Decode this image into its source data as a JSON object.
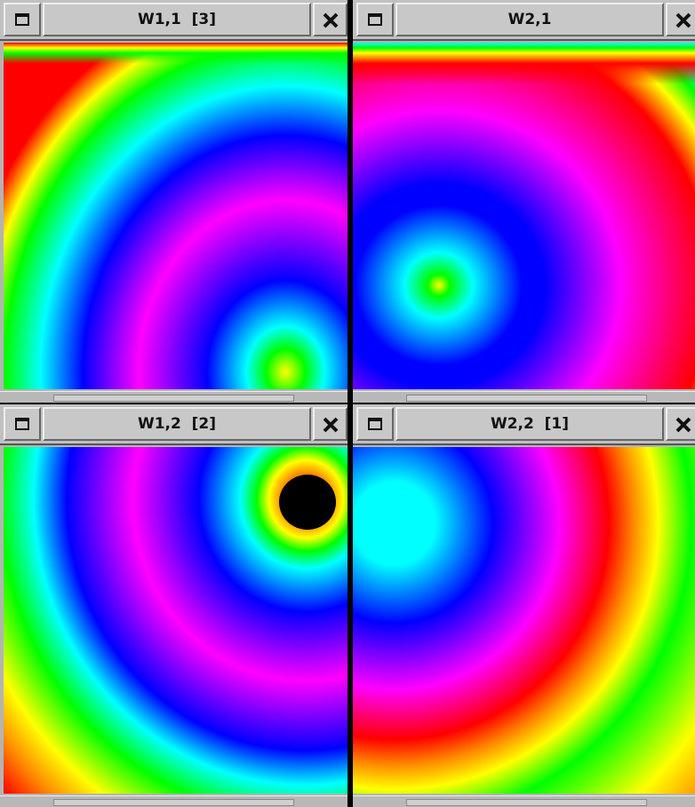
{
  "windows": [
    {
      "title": "W1,1  [3]"
    },
    {
      "title": "W2,1"
    },
    {
      "title": "W1,2  [2]"
    },
    {
      "title": "W2,2  [1]"
    }
  ]
}
